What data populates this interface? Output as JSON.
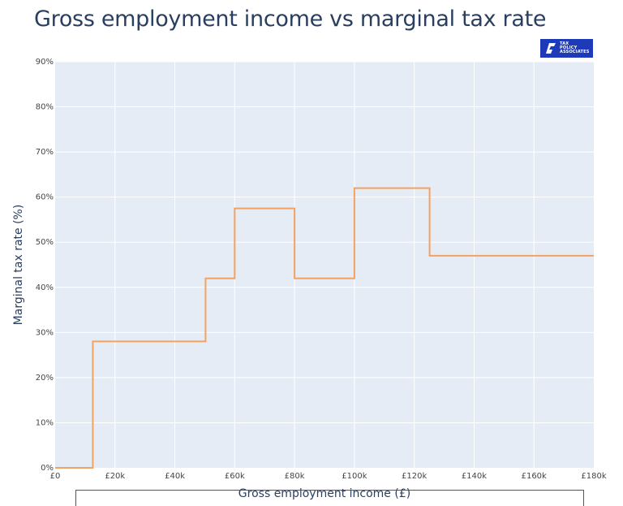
{
  "chart_data": {
    "type": "line",
    "line_shape": "step",
    "title": "Gross employment income vs marginal tax rate",
    "xlabel": "Gross employment income (£)",
    "ylabel": "Marginal tax rate (%)",
    "xlim": [
      0,
      180000
    ],
    "ylim": [
      0,
      90
    ],
    "grid": true,
    "legend": "none",
    "x_ticks": [
      {
        "value": 0,
        "label": "£0"
      },
      {
        "value": 20000,
        "label": "£20k"
      },
      {
        "value": 40000,
        "label": "£40k"
      },
      {
        "value": 60000,
        "label": "£60k"
      },
      {
        "value": 80000,
        "label": "£80k"
      },
      {
        "value": 100000,
        "label": "£100k"
      },
      {
        "value": 120000,
        "label": "£120k"
      },
      {
        "value": 140000,
        "label": "£140k"
      },
      {
        "value": 160000,
        "label": "£160k"
      },
      {
        "value": 180000,
        "label": "£180k"
      }
    ],
    "y_ticks": [
      {
        "value": 0,
        "label": "0%"
      },
      {
        "value": 10,
        "label": "10%"
      },
      {
        "value": 20,
        "label": "20%"
      },
      {
        "value": 30,
        "label": "30%"
      },
      {
        "value": 40,
        "label": "40%"
      },
      {
        "value": 50,
        "label": "50%"
      },
      {
        "value": 60,
        "label": "60%"
      },
      {
        "value": 70,
        "label": "70%"
      },
      {
        "value": 80,
        "label": "80%"
      },
      {
        "value": 90,
        "label": "90%"
      }
    ],
    "series": [
      {
        "name": "Marginal tax rate",
        "color": "#f4a261",
        "x": [
          0,
          12570,
          12570,
          50270,
          50270,
          60000,
          60000,
          80000,
          80000,
          100000,
          100000,
          125140,
          125140,
          180000
        ],
        "y": [
          0,
          0,
          28,
          28,
          42,
          42,
          57.5,
          57.5,
          42,
          42,
          62,
          62,
          47,
          47
        ]
      }
    ]
  },
  "colors": {
    "plot_background": "#e5ecf6",
    "grid": "#ffffff",
    "line": "#f4a261",
    "title": "#2a3f5f",
    "logo_background": "#1d3bb8"
  },
  "logo": {
    "lines": [
      "TAX",
      "POLICY",
      "ASSOCIATES"
    ]
  }
}
